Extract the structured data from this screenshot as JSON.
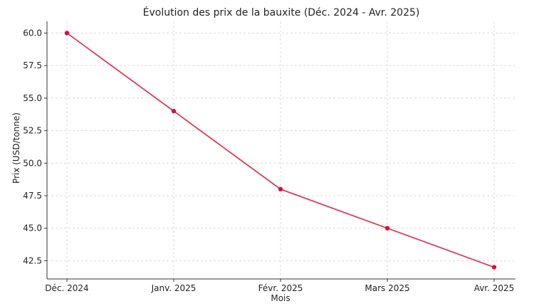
{
  "chart_data": {
    "type": "line",
    "title": "Évolution des prix de la bauxite (Déc. 2024 - Avr. 2025)",
    "xlabel": "Mois",
    "ylabel": "Prix (USD/tonne)",
    "categories": [
      "Déc. 2024",
      "Janv. 2025",
      "Févr. 2025",
      "Mars 2025",
      "Avr. 2025"
    ],
    "series": [
      {
        "values": [
          60.0,
          54.0,
          48.0,
          45.0,
          42.0
        ]
      }
    ],
    "yticks": [
      42.5,
      45.0,
      47.5,
      50.0,
      52.5,
      55.0,
      57.5,
      60.0
    ],
    "ytick_labels": [
      "42.5",
      "45.0",
      "47.5",
      "50.0",
      "52.5",
      "55.0",
      "57.5",
      "60.0"
    ],
    "ylim": [
      41.1,
      60.9
    ],
    "grid": true,
    "colors": {
      "line": "#dc3b5a",
      "marker": "#d6113c",
      "grid": "#d9d9d9",
      "axis": "#333333"
    }
  }
}
